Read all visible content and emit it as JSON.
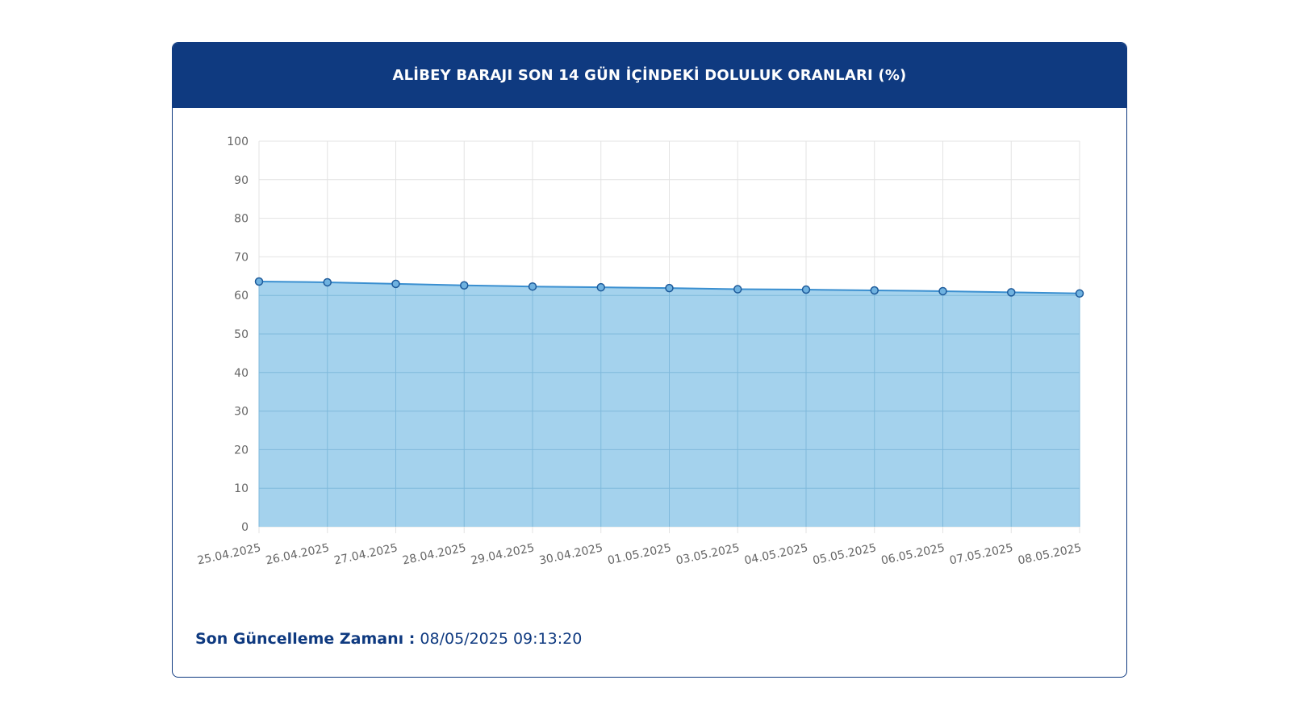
{
  "card": {
    "title": "ALİBEY BARAJI SON 14 GÜN İÇİNDEKİ DOLULUK ORANLARI (%)"
  },
  "footer": {
    "label": "Son Güncelleme Zamanı :",
    "value": "08/05/2025 09:13:20"
  },
  "colors": {
    "header_bg": "#0f3a80",
    "line": "#3a8fd0",
    "fill": "#9fd0ec",
    "point_fill": "#6fb2e0",
    "point_stroke": "#1d5a9a",
    "grid": "#e3e3e3",
    "tick_text": "#666666"
  },
  "chart_data": {
    "type": "area",
    "categories": [
      "25.04.2025",
      "26.04.2025",
      "27.04.2025",
      "28.04.2025",
      "29.04.2025",
      "30.04.2025",
      "01.05.2025",
      "03.05.2025",
      "04.05.2025",
      "05.05.2025",
      "06.05.2025",
      "07.05.2025",
      "08.05.2025"
    ],
    "series": [
      {
        "values": [
          63.6,
          63.4,
          63.0,
          62.6,
          62.3,
          62.1,
          61.9,
          61.6,
          61.5,
          61.3,
          61.1,
          60.8,
          60.5
        ]
      }
    ],
    "y_ticks": [
      "0",
      "10",
      "20",
      "30",
      "40",
      "50",
      "60",
      "70",
      "80",
      "90",
      "100"
    ],
    "ylim": [
      0,
      100
    ],
    "grid": true,
    "legend": "none"
  }
}
